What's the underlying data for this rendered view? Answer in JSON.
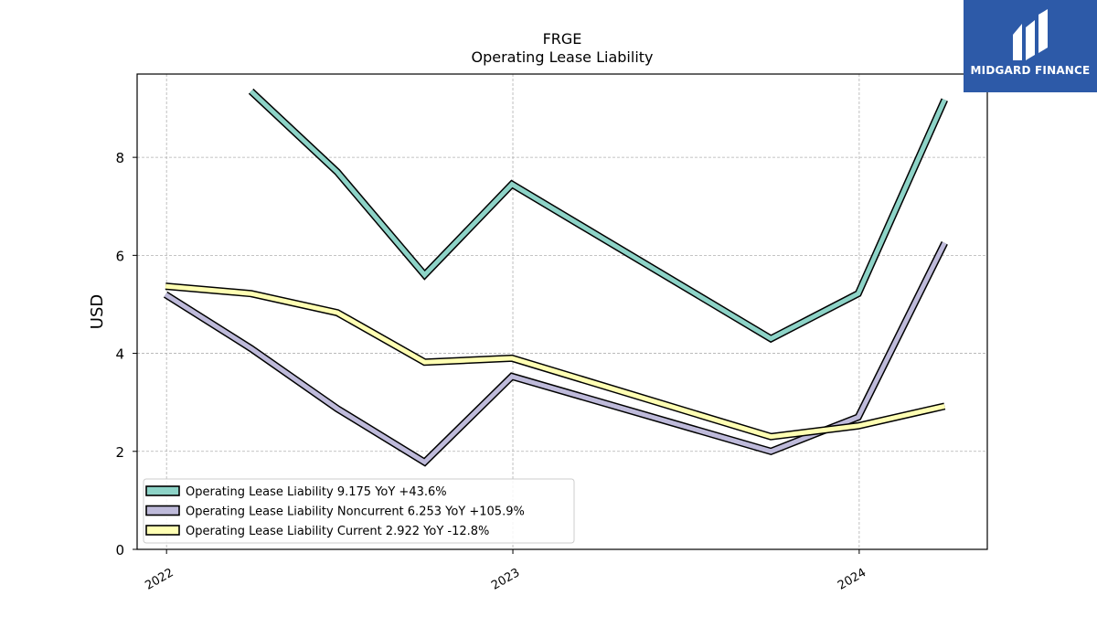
{
  "brand": {
    "name": "MIDGARD FINANCE",
    "bg_color": "#2d5aa8"
  },
  "chart_data": {
    "type": "line",
    "title": "FRGE",
    "subtitle": "Operating Lease Liability",
    "xlabel": "",
    "ylabel": "USD",
    "x_ticks": [
      "2022",
      "2023",
      "2024"
    ],
    "x_range": [
      "2021-12-01",
      "2024-05-15"
    ],
    "ylim": [
      0,
      9.7
    ],
    "y_ticks": [
      0,
      2,
      4,
      6,
      8
    ],
    "grid": true,
    "legend_position": "lower-left",
    "x": [
      "2021-12-31",
      "2022-03-31",
      "2022-06-30",
      "2022-09-30",
      "2022-12-31",
      "2023-03-31",
      "2023-06-30",
      "2023-09-30",
      "2023-12-31",
      "2024-03-31"
    ],
    "series": [
      {
        "name": "Operating Lease Liability",
        "legend_label": "Operating Lease Liability  9.175 YoY +43.6%",
        "color": "#8dd3c7",
        "values": [
          null,
          9.35,
          7.7,
          5.6,
          7.45,
          null,
          null,
          4.3,
          5.22,
          9.175
        ]
      },
      {
        "name": "Operating Lease Liability Noncurrent",
        "legend_label": "Operating Lease Liability Noncurrent  6.253 YoY +105.9%",
        "color": "#bebada",
        "values": [
          5.2,
          4.1,
          2.87,
          1.78,
          3.53,
          null,
          null,
          2.0,
          2.7,
          6.253
        ]
      },
      {
        "name": "Operating Lease Liability Current",
        "legend_label": "Operating Lease Liability Current  2.922 YoY -12.8%",
        "color": "#ffffb3",
        "values": [
          5.37,
          5.22,
          4.83,
          3.82,
          3.9,
          null,
          null,
          2.3,
          2.52,
          2.922
        ]
      }
    ]
  }
}
